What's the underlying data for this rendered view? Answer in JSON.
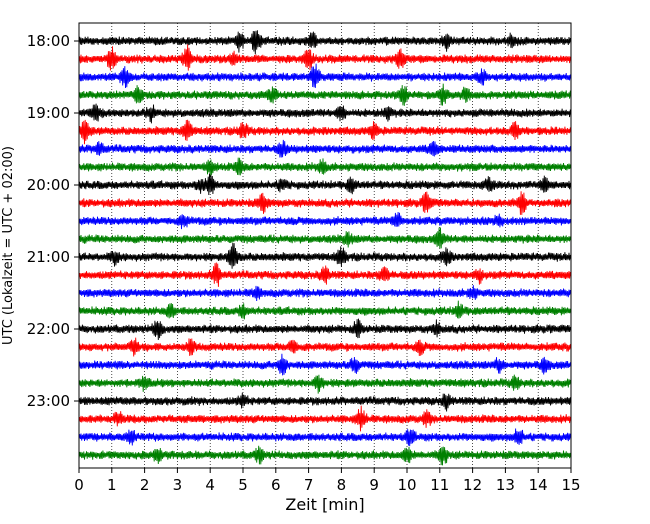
{
  "chart_data": {
    "type": "line",
    "title": "",
    "xlabel": "Zeit  [min]",
    "ylabel": "UTC (Lokalzeit = UTC + 02:00)",
    "xlim": [
      0,
      15
    ],
    "x_ticks": [
      "0",
      "1",
      "2",
      "3",
      "4",
      "5",
      "6",
      "7",
      "8",
      "9",
      "10",
      "11",
      "12",
      "13",
      "14",
      "15"
    ],
    "y_tick_labels": [
      "18:00",
      "19:00",
      "20:00",
      "21:00",
      "22:00",
      "23:00"
    ],
    "start_time": "18:00",
    "trace_minutes": 15,
    "trace_count": 24,
    "trace_colors": [
      "#000000",
      "#ff0000",
      "#0000ff",
      "#008000"
    ],
    "grid": "vertical dotted at each minute",
    "series": [
      {
        "start": "18:00",
        "color": "#000000",
        "events": [
          [
            4.9,
            0.9
          ],
          [
            5.4,
            1.3
          ],
          [
            7.1,
            0.8
          ],
          [
            11.2,
            0.7
          ],
          [
            13.2,
            0.6
          ]
        ]
      },
      {
        "start": "18:15",
        "color": "#ff0000",
        "events": [
          [
            1.0,
            1.2
          ],
          [
            3.3,
            1.3
          ],
          [
            4.7,
            0.6
          ],
          [
            7.0,
            0.9
          ],
          [
            9.8,
            0.8
          ]
        ]
      },
      {
        "start": "18:30",
        "color": "#0000ff",
        "events": [
          [
            1.4,
            0.9
          ],
          [
            7.2,
            1.2
          ],
          [
            12.3,
            0.6
          ]
        ]
      },
      {
        "start": "18:45",
        "color": "#008000",
        "events": [
          [
            1.8,
            0.7
          ],
          [
            5.9,
            0.6
          ],
          [
            9.9,
            0.8
          ],
          [
            11.1,
            0.9
          ],
          [
            11.8,
            0.6
          ]
        ]
      },
      {
        "start": "19:00",
        "color": "#000000",
        "events": [
          [
            0.5,
            0.8
          ],
          [
            2.2,
            0.7
          ],
          [
            8.0,
            0.7
          ],
          [
            9.4,
            0.6
          ]
        ]
      },
      {
        "start": "19:15",
        "color": "#ff0000",
        "events": [
          [
            0.2,
            1.2
          ],
          [
            3.3,
            1.1
          ],
          [
            5.0,
            0.8
          ],
          [
            9.0,
            0.7
          ],
          [
            13.3,
            0.8
          ]
        ]
      },
      {
        "start": "19:30",
        "color": "#0000ff",
        "events": [
          [
            0.6,
            0.6
          ],
          [
            6.2,
            0.7
          ],
          [
            10.8,
            0.6
          ]
        ]
      },
      {
        "start": "19:45",
        "color": "#008000",
        "events": [
          [
            4.0,
            0.6
          ],
          [
            4.9,
            0.7
          ],
          [
            7.4,
            0.6
          ]
        ]
      },
      {
        "start": "20:00",
        "color": "#000000",
        "events": [
          [
            3.7,
            0.6
          ],
          [
            4.0,
            1.0
          ],
          [
            6.2,
            0.6
          ],
          [
            8.3,
            0.7
          ],
          [
            12.5,
            0.6
          ],
          [
            14.2,
            0.6
          ]
        ]
      },
      {
        "start": "20:15",
        "color": "#ff0000",
        "events": [
          [
            5.6,
            0.9
          ],
          [
            10.6,
            1.0
          ],
          [
            13.5,
            1.1
          ]
        ]
      },
      {
        "start": "20:30",
        "color": "#0000ff",
        "events": [
          [
            3.2,
            0.6
          ],
          [
            9.7,
            0.7
          ],
          [
            12.8,
            0.6
          ]
        ]
      },
      {
        "start": "20:45",
        "color": "#008000",
        "events": [
          [
            11.0,
            1.0
          ],
          [
            8.2,
            0.6
          ]
        ]
      },
      {
        "start": "21:00",
        "color": "#000000",
        "events": [
          [
            1.1,
            0.6
          ],
          [
            4.7,
            1.4
          ],
          [
            8.0,
            0.9
          ],
          [
            11.2,
            0.8
          ]
        ]
      },
      {
        "start": "21:15",
        "color": "#ff0000",
        "events": [
          [
            4.2,
            1.1
          ],
          [
            7.5,
            0.8
          ],
          [
            9.3,
            0.8
          ],
          [
            12.2,
            0.6
          ]
        ]
      },
      {
        "start": "21:30",
        "color": "#0000ff",
        "events": [
          [
            5.4,
            0.5
          ],
          [
            12.0,
            0.5
          ]
        ]
      },
      {
        "start": "21:45",
        "color": "#008000",
        "events": [
          [
            2.8,
            0.6
          ],
          [
            5.0,
            0.6
          ],
          [
            11.6,
            0.7
          ]
        ]
      },
      {
        "start": "22:00",
        "color": "#000000",
        "events": [
          [
            2.4,
            1.0
          ],
          [
            8.5,
            0.8
          ],
          [
            10.9,
            0.6
          ]
        ]
      },
      {
        "start": "22:15",
        "color": "#ff0000",
        "events": [
          [
            1.7,
            0.7
          ],
          [
            3.4,
            0.6
          ],
          [
            6.5,
            0.7
          ],
          [
            10.4,
            0.6
          ]
        ]
      },
      {
        "start": "22:30",
        "color": "#0000ff",
        "events": [
          [
            6.2,
            1.0
          ],
          [
            8.4,
            0.7
          ],
          [
            12.8,
            0.6
          ],
          [
            14.2,
            0.6
          ]
        ]
      },
      {
        "start": "22:45",
        "color": "#008000",
        "events": [
          [
            2.0,
            0.7
          ],
          [
            7.3,
            0.8
          ],
          [
            13.3,
            0.6
          ]
        ]
      },
      {
        "start": "23:00",
        "color": "#000000",
        "events": [
          [
            5.0,
            0.6
          ],
          [
            11.2,
            0.7
          ]
        ]
      },
      {
        "start": "23:15",
        "color": "#ff0000",
        "events": [
          [
            1.2,
            0.6
          ],
          [
            8.6,
            1.1
          ],
          [
            10.6,
            0.6
          ]
        ]
      },
      {
        "start": "23:30",
        "color": "#0000ff",
        "events": [
          [
            1.6,
            0.6
          ],
          [
            10.1,
            0.7
          ],
          [
            13.4,
            0.8
          ]
        ]
      },
      {
        "start": "23:45",
        "color": "#008000",
        "events": [
          [
            2.4,
            0.7
          ],
          [
            5.5,
            0.7
          ],
          [
            10.0,
            0.8
          ],
          [
            11.1,
            0.9
          ]
        ]
      }
    ]
  }
}
